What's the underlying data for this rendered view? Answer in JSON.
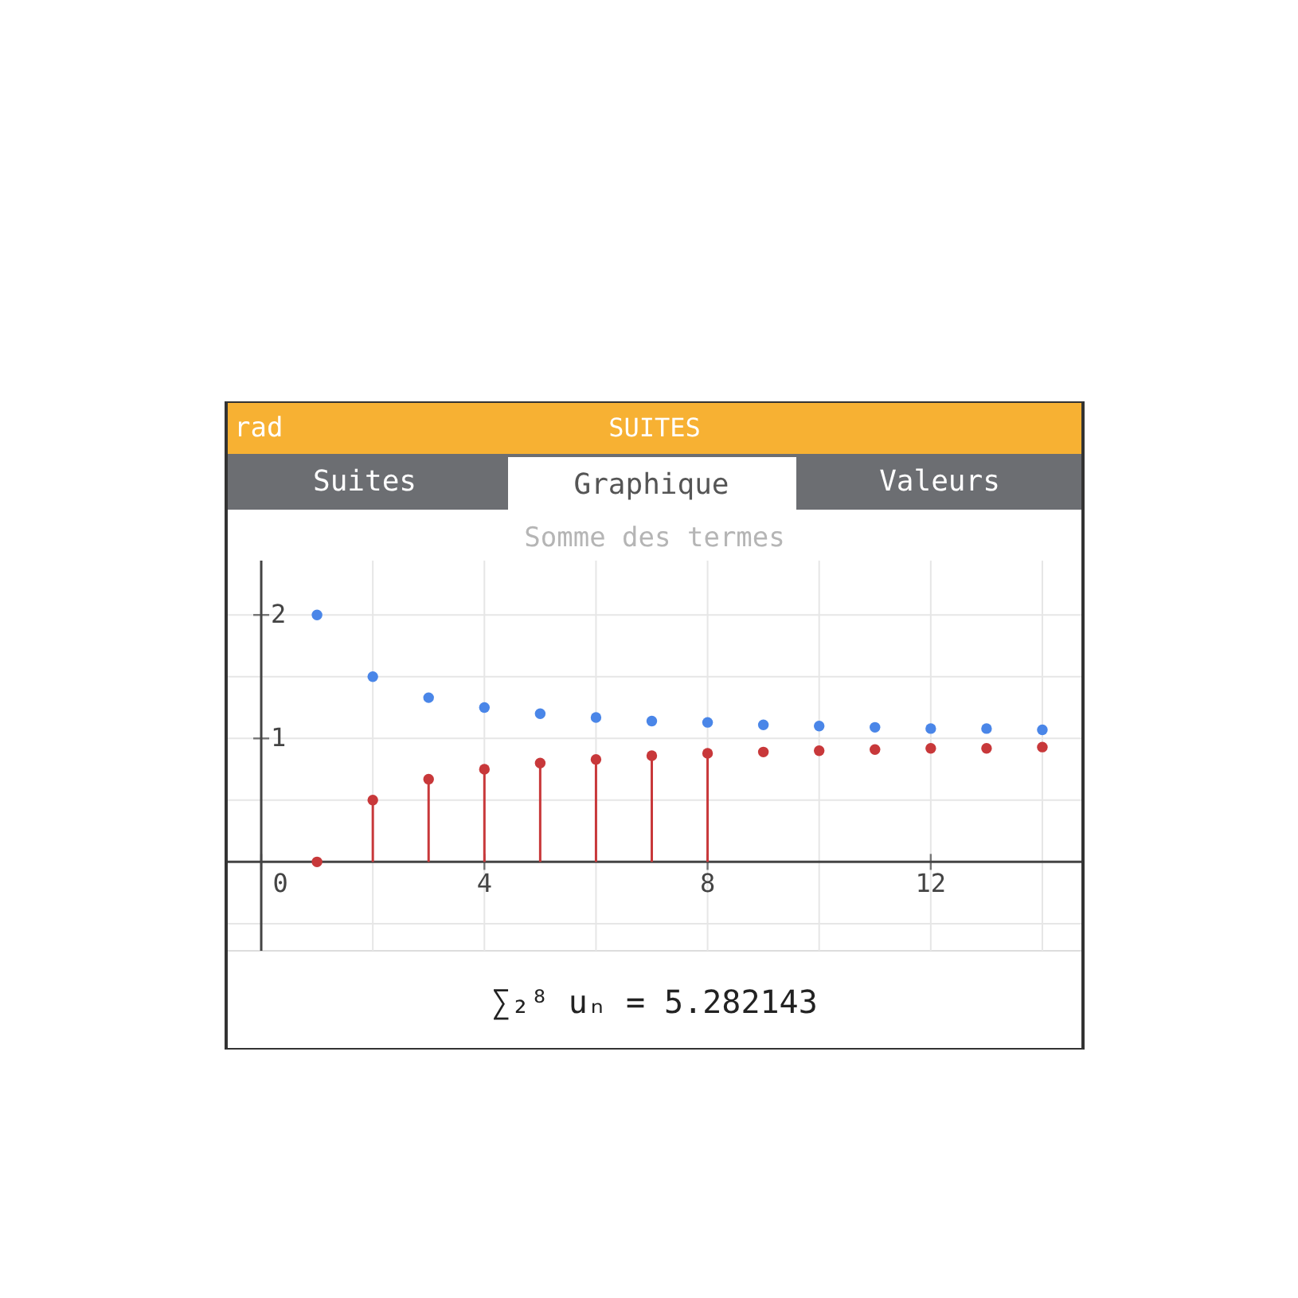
{
  "chart_data": {
    "type": "scatter",
    "title": "Somme des termes",
    "xlim": [
      -0.6,
      14.7
    ],
    "ylim": [
      -0.72,
      2.44
    ],
    "xticks": [
      0,
      {
        "value": 2,
        "label": null
      },
      4,
      {
        "value": 6,
        "label": null
      },
      8,
      {
        "value": 10,
        "label": null
      },
      12,
      {
        "value": 14,
        "label": null
      }
    ],
    "yticks": [
      {
        "value": -0.5,
        "label": null
      },
      {
        "value": 0,
        "label": null
      },
      {
        "value": 0.5,
        "label": null
      },
      1,
      {
        "value": 1.5,
        "label": null
      },
      2
    ],
    "grid": true,
    "marker": "circle",
    "series": [
      {
        "color": "#4a86e8",
        "x": [
          1,
          2,
          3,
          4,
          5,
          6,
          7,
          8,
          9,
          10,
          11,
          12,
          13,
          14
        ],
        "values": [
          2,
          1.5,
          1.33,
          1.25,
          1.2,
          1.17,
          1.14,
          1.13,
          1.11,
          1.1,
          1.09,
          1.08,
          1.08,
          1.07
        ]
      },
      {
        "color": "#c8383a",
        "x": [
          1,
          9,
          10,
          11,
          12,
          13,
          14
        ],
        "values": [
          0,
          0.89,
          0.9,
          0.91,
          0.92,
          0.92,
          0.93
        ]
      },
      {
        "type": "lollipop",
        "color": "#c8383a",
        "x": [
          2,
          3,
          4,
          5,
          6,
          7,
          8
        ],
        "values": [
          0.5,
          0.67,
          0.75,
          0.8,
          0.83,
          0.86,
          0.88
        ]
      }
    ],
    "annotations": [
      "rad",
      "SUITES",
      "Suites",
      "Graphique",
      "Valeurs",
      "∑₂⁸ uₙ = 5.282143"
    ]
  }
}
